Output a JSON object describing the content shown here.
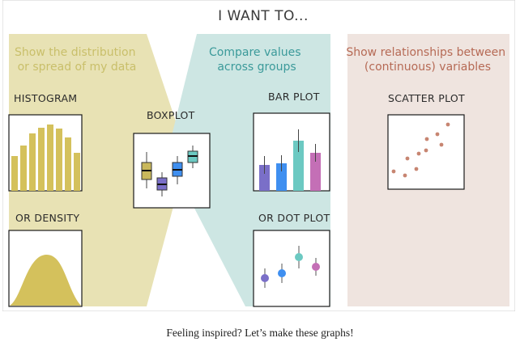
{
  "title": "I WANT TO...",
  "colors": {
    "distribution": "#c9bf6a",
    "distribution_band": "#e8e2b4",
    "compare": "#3b9a9a",
    "compare_band": "#cde6e3",
    "relationship": "#b66a55",
    "relationship_band": "#efe4df",
    "bar_purple": "#7a6fc8",
    "bar_blue": "#3f8ff0",
    "bar_teal": "#6cc9c2",
    "bar_magenta": "#c46fb6",
    "box_yellow": "#c9b85c",
    "box_purple": "#7a6fc8",
    "box_blue": "#3f8ff0",
    "box_teal": "#6cc9c2",
    "scatter": "#c78571",
    "hist": "#d4c15c"
  },
  "sections": [
    {
      "key": "distribution",
      "lines": [
        "Show the distribution",
        "or spread of my data"
      ]
    },
    {
      "key": "compare",
      "lines": [
        "Compare values",
        "across groups"
      ]
    },
    {
      "key": "relationship",
      "lines": [
        "Show relationships between",
        "(continuous) variables"
      ]
    }
  ],
  "plots": {
    "histogram": "HISTOGRAM",
    "density": "OR DENSITY",
    "boxplot": "BOXPLOT",
    "barplot": "BAR PLOT",
    "dotplot": "OR DOT PLOT",
    "scatter": "SCATTER PLOT"
  },
  "caption": "Feeling inspired? Let’s make these graphs!"
}
